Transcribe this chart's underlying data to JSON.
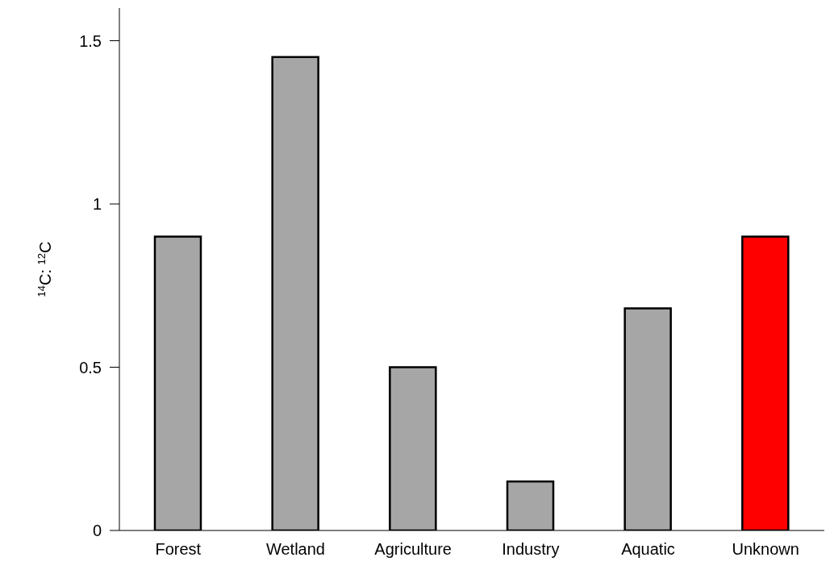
{
  "chart_data": {
    "type": "bar",
    "ylabel": "$^{14}$C: $^{12}$C",
    "categories": [
      "Forest",
      "Wetland",
      "Agriculture",
      "Industry",
      "Aquatic",
      "Unknown"
    ],
    "values": [
      0.9,
      1.45,
      0.5,
      0.15,
      0.68,
      0.9
    ],
    "colors": [
      "#a6a6a6",
      "#a6a6a6",
      "#a6a6a6",
      "#a6a6a6",
      "#a6a6a6",
      "#ff0000"
    ],
    "ylim": [
      0,
      1.6
    ],
    "yticks": [
      0,
      0.5,
      1,
      1.5
    ],
    "grid": false,
    "legend": false
  }
}
